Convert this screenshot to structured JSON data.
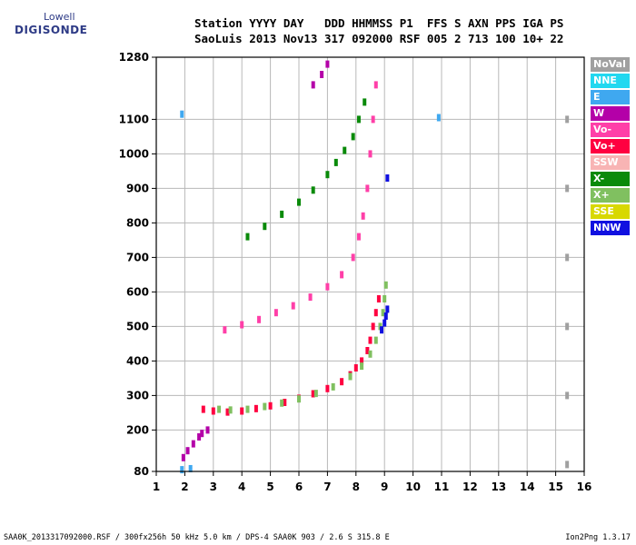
{
  "logo": {
    "top": "Lowell",
    "bottom": "DIGISONDE"
  },
  "header": {
    "line1": "Station YYYY DAY   DDD HHMMSS P1  FFS S AXN PPS IGA PS",
    "line2": "SaoLuis 2013 Nov13 317 092000 RSF 005 2 713 100 10+ 22"
  },
  "footer": {
    "left": "SAA0K_2013317092000.RSF / 300fx256h 50 kHz 5.0 km / DPS-4 SAA0K 903 / 2.6 S 315.8 E",
    "right": "Ion2Png 1.3.17"
  },
  "legend": [
    {
      "label": "NoVal",
      "color": "#a0a0a0"
    },
    {
      "label": "NNE",
      "color": "#22d8f0"
    },
    {
      "label": "E",
      "color": "#3fa8f0"
    },
    {
      "label": "W",
      "color": "#b400a8"
    },
    {
      "label": "Vo-",
      "color": "#ff3fa8"
    },
    {
      "label": "Vo+",
      "color": "#ff0040"
    },
    {
      "label": "SSW",
      "color": "#f8b4b4"
    },
    {
      "label": "X-",
      "color": "#0a8a0a"
    },
    {
      "label": "X+",
      "color": "#80c060"
    },
    {
      "label": "SSE",
      "color": "#d8d800"
    },
    {
      "label": "NNW",
      "color": "#1010e0"
    }
  ],
  "chart_data": {
    "type": "scatter",
    "xlim": [
      1,
      16
    ],
    "ylim": [
      80,
      1280
    ],
    "x_ticks": [
      1,
      2,
      3,
      4,
      5,
      6,
      7,
      8,
      9,
      10,
      11,
      12,
      13,
      14,
      15,
      16
    ],
    "y_ticks": [
      80,
      200,
      300,
      400,
      500,
      600,
      700,
      800,
      900,
      1000,
      1100,
      1280
    ],
    "grid": true,
    "series": [
      {
        "name": "Vo+",
        "color": "#ff0040",
        "points": [
          [
            2.65,
            260
          ],
          [
            3.0,
            255
          ],
          [
            3.5,
            252
          ],
          [
            4.0,
            255
          ],
          [
            4.5,
            262
          ],
          [
            5.0,
            270
          ],
          [
            5.5,
            280
          ],
          [
            6.0,
            292
          ],
          [
            6.5,
            305
          ],
          [
            7.0,
            320
          ],
          [
            7.5,
            340
          ],
          [
            7.8,
            360
          ],
          [
            8.0,
            380
          ],
          [
            8.2,
            400
          ],
          [
            8.4,
            430
          ],
          [
            8.5,
            460
          ],
          [
            8.6,
            500
          ],
          [
            8.7,
            540
          ],
          [
            8.8,
            580
          ]
        ]
      },
      {
        "name": "X+",
        "color": "#80c060",
        "points": [
          [
            3.2,
            260
          ],
          [
            3.6,
            258
          ],
          [
            4.2,
            260
          ],
          [
            4.8,
            268
          ],
          [
            5.4,
            278
          ],
          [
            6.0,
            290
          ],
          [
            6.6,
            306
          ],
          [
            7.2,
            325
          ],
          [
            7.8,
            355
          ],
          [
            8.2,
            385
          ],
          [
            8.5,
            420
          ],
          [
            8.7,
            460
          ],
          [
            8.85,
            500
          ],
          [
            8.95,
            540
          ],
          [
            9.0,
            580
          ],
          [
            9.05,
            620
          ]
        ]
      },
      {
        "name": "Vo-",
        "color": "#ff3fa8",
        "points": [
          [
            3.4,
            490
          ],
          [
            4.0,
            505
          ],
          [
            4.6,
            520
          ],
          [
            5.2,
            540
          ],
          [
            5.8,
            560
          ],
          [
            6.4,
            585
          ],
          [
            7.0,
            615
          ],
          [
            7.5,
            650
          ],
          [
            7.9,
            700
          ],
          [
            8.1,
            760
          ],
          [
            8.25,
            820
          ],
          [
            8.4,
            900
          ],
          [
            8.5,
            1000
          ],
          [
            8.6,
            1100
          ],
          [
            8.7,
            1200
          ]
        ]
      },
      {
        "name": "X-",
        "color": "#0a8a0a",
        "points": [
          [
            4.2,
            760
          ],
          [
            4.8,
            790
          ],
          [
            5.4,
            825
          ],
          [
            6.0,
            860
          ],
          [
            6.5,
            895
          ],
          [
            7.0,
            940
          ],
          [
            7.3,
            975
          ],
          [
            7.6,
            1010
          ],
          [
            7.9,
            1050
          ],
          [
            8.1,
            1100
          ],
          [
            8.3,
            1150
          ]
        ]
      },
      {
        "name": "W",
        "color": "#b400a8",
        "points": [
          [
            1.95,
            120
          ],
          [
            2.1,
            140
          ],
          [
            2.3,
            160
          ],
          [
            2.5,
            180
          ],
          [
            2.6,
            190
          ],
          [
            2.8,
            200
          ],
          [
            6.5,
            1200
          ],
          [
            6.8,
            1230
          ],
          [
            7.0,
            1260
          ]
        ]
      },
      {
        "name": "NNW",
        "color": "#1010e0",
        "points": [
          [
            8.9,
            490
          ],
          [
            9.0,
            510
          ],
          [
            9.05,
            530
          ],
          [
            9.1,
            550
          ],
          [
            9.1,
            930
          ]
        ]
      },
      {
        "name": "E",
        "color": "#3fa8f0",
        "points": [
          [
            1.9,
            85
          ],
          [
            2.2,
            88
          ],
          [
            10.9,
            1105
          ],
          [
            1.9,
            1115
          ]
        ]
      },
      {
        "name": "NoVal",
        "color": "#a0a0a0",
        "points": [
          [
            15.4,
            100
          ],
          [
            15.4,
            300
          ],
          [
            15.4,
            500
          ],
          [
            15.4,
            700
          ],
          [
            15.4,
            900
          ],
          [
            15.4,
            1100
          ]
        ]
      }
    ]
  }
}
